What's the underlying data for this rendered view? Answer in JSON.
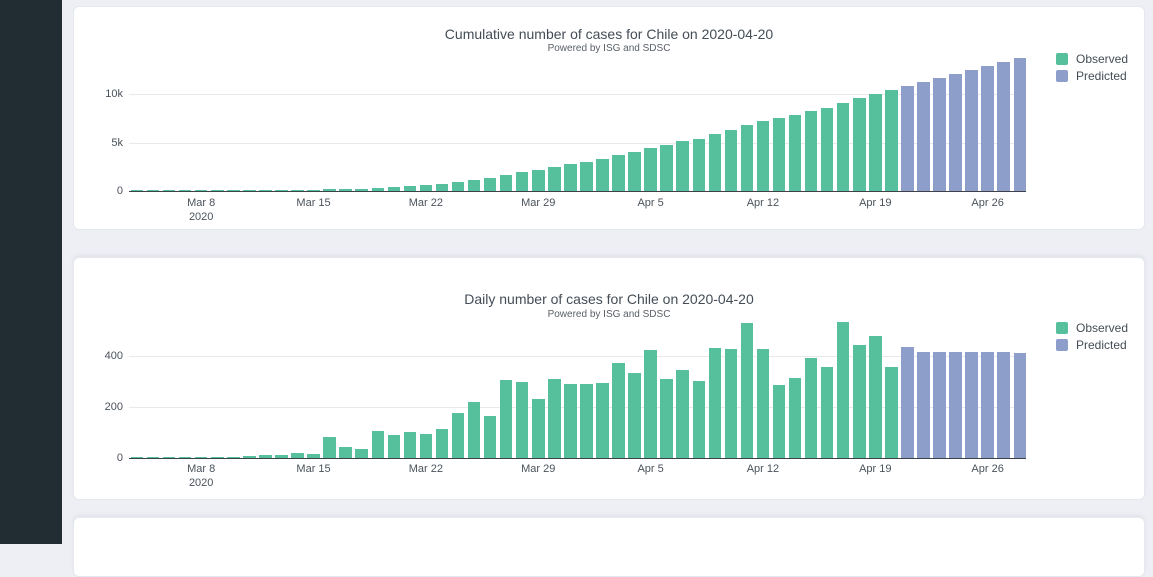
{
  "legend": {
    "observed": "Observed",
    "predicted": "Predicted"
  },
  "colors": {
    "observed": "#56bf9b",
    "predicted": "#8d9eca",
    "page_bg": "#edeff4",
    "sidebar_bg": "#222d33",
    "card_bg": "#ffffff",
    "grid": "#e9e9e9",
    "axis": "#3d4249",
    "text": "#444d56",
    "subtitle_text": "#5a6068"
  },
  "chart_data": [
    {
      "type": "bar",
      "title": "Cumulative number of cases for Chile on 2020-04-20",
      "subtitle": "Powered by ISG and SDSC",
      "x": [
        "Mar 4",
        "Mar 5",
        "Mar 6",
        "Mar 7",
        "Mar 8",
        "Mar 9",
        "Mar 10",
        "Mar 11",
        "Mar 12",
        "Mar 13",
        "Mar 14",
        "Mar 15",
        "Mar 16",
        "Mar 17",
        "Mar 18",
        "Mar 19",
        "Mar 20",
        "Mar 21",
        "Mar 22",
        "Mar 23",
        "Mar 24",
        "Mar 25",
        "Mar 26",
        "Mar 27",
        "Mar 28",
        "Mar 29",
        "Mar 30",
        "Mar 31",
        "Apr 1",
        "Apr 2",
        "Apr 3",
        "Apr 4",
        "Apr 5",
        "Apr 6",
        "Apr 7",
        "Apr 8",
        "Apr 9",
        "Apr 10",
        "Apr 11",
        "Apr 12",
        "Apr 13",
        "Apr 14",
        "Apr 15",
        "Apr 16",
        "Apr 17",
        "Apr 18",
        "Apr 19",
        "Apr 20",
        "Apr 21",
        "Apr 22",
        "Apr 23",
        "Apr 24",
        "Apr 25",
        "Apr 26",
        "Apr 27",
        "Apr 28"
      ],
      "series": [
        {
          "name": "Observed",
          "values": [
            3,
            4,
            5,
            7,
            10,
            13,
            17,
            23,
            33,
            43,
            61,
            75,
            156,
            201,
            238,
            342,
            434,
            537,
            632,
            746,
            922,
            1142,
            1306,
            1610,
            1909,
            2139,
            2449,
            2738,
            3028,
            3321,
            3694,
            4027,
            4451,
            4761,
            5105,
            5406,
            5836,
            6262,
            6791,
            7217,
            7503,
            7815,
            8207,
            8563,
            9097,
            9542,
            10020,
            10378
          ]
        },
        {
          "name": "Predicted",
          "values": [
            10813,
            11227,
            11641,
            12055,
            12469,
            12883,
            13297,
            13709
          ]
        }
      ],
      "ylim": [
        0,
        14000
      ],
      "ytick_values": [
        0,
        5000,
        10000
      ],
      "ytick_labels": [
        "0",
        "5k",
        "10k"
      ],
      "xtick_labels": [
        "Mar 8",
        "Mar 15",
        "Mar 22",
        "Mar 29",
        "Apr 5",
        "Apr 12",
        "Apr 19",
        "Apr 26"
      ],
      "xtick_sub_label": "2020",
      "legend_position": "top-right",
      "grid": true
    },
    {
      "type": "bar",
      "title": "Daily number of cases for Chile on 2020-04-20",
      "subtitle": "Powered by ISG and SDSC",
      "x": [
        "Mar 4",
        "Mar 5",
        "Mar 6",
        "Mar 7",
        "Mar 8",
        "Mar 9",
        "Mar 10",
        "Mar 11",
        "Mar 12",
        "Mar 13",
        "Mar 14",
        "Mar 15",
        "Mar 16",
        "Mar 17",
        "Mar 18",
        "Mar 19",
        "Mar 20",
        "Mar 21",
        "Mar 22",
        "Mar 23",
        "Mar 24",
        "Mar 25",
        "Mar 26",
        "Mar 27",
        "Mar 28",
        "Mar 29",
        "Mar 30",
        "Mar 31",
        "Apr 1",
        "Apr 2",
        "Apr 3",
        "Apr 4",
        "Apr 5",
        "Apr 6",
        "Apr 7",
        "Apr 8",
        "Apr 9",
        "Apr 10",
        "Apr 11",
        "Apr 12",
        "Apr 13",
        "Apr 14",
        "Apr 15",
        "Apr 16",
        "Apr 17",
        "Apr 18",
        "Apr 19",
        "Apr 20",
        "Apr 21",
        "Apr 22",
        "Apr 23",
        "Apr 24",
        "Apr 25",
        "Apr 26",
        "Apr 27",
        "Apr 28"
      ],
      "series": [
        {
          "name": "Observed",
          "values": [
            2,
            1,
            1,
            2,
            3,
            3,
            4,
            6,
            10,
            10,
            18,
            14,
            81,
            45,
            37,
            104,
            92,
            103,
            95,
            114,
            176,
            220,
            164,
            304,
            299,
            230,
            310,
            289,
            290,
            293,
            373,
            333,
            424,
            310,
            344,
            301,
            430,
            426,
            529,
            426,
            286,
            312,
            392,
            356,
            534,
            445,
            478,
            358
          ]
        },
        {
          "name": "Predicted",
          "values": [
            435,
            414,
            414,
            414,
            414,
            414,
            414,
            412
          ]
        }
      ],
      "ylim": [
        0,
        560
      ],
      "ytick_values": [
        0,
        200,
        400
      ],
      "ytick_labels": [
        "0",
        "200",
        "400"
      ],
      "xtick_labels": [
        "Mar 8",
        "Mar 15",
        "Mar 22",
        "Mar 29",
        "Apr 5",
        "Apr 12",
        "Apr 19",
        "Apr 26"
      ],
      "xtick_sub_label": "2020",
      "legend_position": "top-right",
      "grid": true
    }
  ]
}
